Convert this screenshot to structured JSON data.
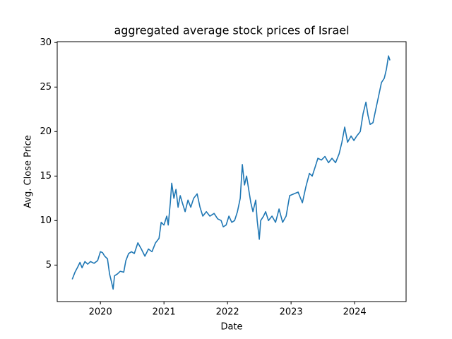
{
  "chart_data": {
    "type": "line",
    "title": "aggregated average stock prices of Israel",
    "x_label": "Date",
    "y_label": "Avg. Close Price",
    "x": [
      2019.556,
      2019.6,
      2019.644,
      2019.678,
      2019.711,
      2019.756,
      2019.8,
      2019.844,
      2019.9,
      2019.956,
      2020.0,
      2020.033,
      2020.067,
      2020.111,
      2020.144,
      2020.178,
      2020.2,
      2020.222,
      2020.267,
      2020.311,
      2020.367,
      2020.4,
      2020.444,
      2020.489,
      2020.533,
      2020.589,
      2020.644,
      2020.7,
      2020.756,
      2020.811,
      2020.867,
      2020.922,
      2020.956,
      2021.0,
      2021.044,
      2021.067,
      2021.1,
      2021.122,
      2021.156,
      2021.189,
      2021.222,
      2021.256,
      2021.289,
      2021.333,
      2021.378,
      2021.422,
      2021.467,
      2021.522,
      2021.567,
      2021.611,
      2021.667,
      2021.722,
      2021.789,
      2021.844,
      2021.9,
      2021.933,
      2021.978,
      2022.022,
      2022.067,
      2022.111,
      2022.156,
      2022.2,
      2022.233,
      2022.267,
      2022.3,
      2022.333,
      2022.367,
      2022.4,
      2022.444,
      2022.467,
      2022.5,
      2022.522,
      2022.567,
      2022.6,
      2022.644,
      2022.7,
      2022.756,
      2022.811,
      2022.867,
      2022.922,
      2022.978,
      2023.044,
      2023.111,
      2023.178,
      2023.233,
      2023.289,
      2023.333,
      2023.378,
      2023.422,
      2023.478,
      2023.533,
      2023.589,
      2023.644,
      2023.7,
      2023.756,
      2023.8,
      2023.844,
      2023.889,
      2023.944,
      2023.989,
      2024.033,
      2024.089,
      2024.133,
      2024.178,
      2024.211,
      2024.244,
      2024.289,
      2024.333,
      2024.378,
      2024.422,
      2024.467,
      2024.5,
      2024.533,
      2024.556
    ],
    "series": [
      {
        "name": "Avg. Close Price",
        "color": "#1f77b4",
        "values": [
          3.4,
          4.2,
          4.8,
          5.3,
          4.7,
          5.4,
          5.1,
          5.4,
          5.2,
          5.5,
          6.5,
          6.4,
          6.0,
          5.7,
          4.0,
          3.0,
          2.3,
          3.8,
          4.0,
          4.3,
          4.2,
          5.5,
          6.3,
          6.5,
          6.3,
          7.5,
          6.8,
          6.0,
          6.8,
          6.5,
          7.5,
          8.0,
          9.8,
          9.5,
          10.5,
          9.5,
          12.0,
          14.2,
          12.5,
          13.5,
          11.5,
          12.8,
          12.0,
          11.0,
          12.3,
          11.5,
          12.5,
          13.0,
          11.5,
          10.5,
          11.0,
          10.5,
          10.8,
          10.2,
          10.0,
          9.3,
          9.5,
          10.5,
          9.8,
          10.0,
          11.0,
          12.5,
          16.3,
          14.0,
          15.0,
          13.5,
          12.0,
          11.0,
          12.3,
          10.0,
          7.9,
          10.0,
          10.5,
          11.0,
          10.0,
          10.5,
          9.8,
          11.3,
          9.8,
          10.5,
          12.8,
          13.0,
          13.2,
          12.0,
          13.8,
          15.3,
          15.0,
          16.0,
          17.0,
          16.8,
          17.2,
          16.5,
          17.0,
          16.5,
          17.5,
          18.8,
          20.5,
          18.8,
          19.5,
          19.0,
          19.5,
          20.0,
          22.0,
          23.3,
          21.8,
          20.8,
          21.0,
          22.5,
          24.0,
          25.5,
          26.0,
          27.0,
          28.5,
          28.0
        ]
      }
    ],
    "xlim": [
      2019.32,
      2024.81
    ],
    "xticks": [
      2020,
      2021,
      2022,
      2023,
      2024
    ],
    "ylim": [
      0.9,
      30.1
    ],
    "yticks": [
      5,
      10,
      15,
      20,
      25,
      30
    ]
  }
}
